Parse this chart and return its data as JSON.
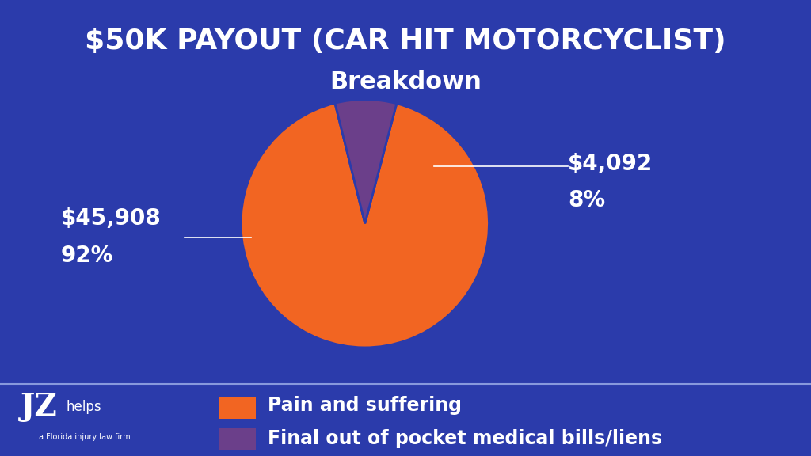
{
  "title_line1": "$50K PAYOUT (CAR HIT MOTORCYCLIST)",
  "title_line2": "Breakdown",
  "background_color": "#2B3BAB",
  "slices": [
    92,
    8
  ],
  "slice_colors": [
    "#F26522",
    "#6B3F8A"
  ],
  "slice_labels": [
    "Pain and suffering",
    "Final out of pocket medical bills/liens"
  ],
  "label_amounts": [
    "$45,908",
    "$4,092"
  ],
  "label_percents": [
    "92%",
    "8%"
  ],
  "text_color": "#FFFFFF",
  "title_fontsize": 26,
  "subtitle_fontsize": 22,
  "label_amount_fontsize": 20,
  "label_pct_fontsize": 20,
  "legend_fontsize": 17,
  "startangle": 104
}
